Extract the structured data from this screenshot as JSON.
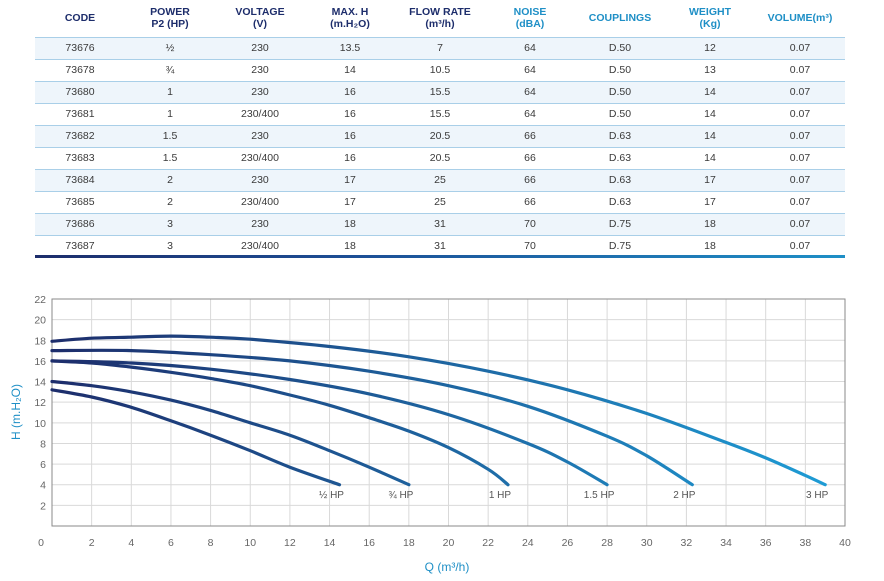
{
  "table": {
    "headers": [
      {
        "label": "CODE",
        "accent": "navy"
      },
      {
        "label": "POWER\nP2 (HP)",
        "accent": "navy"
      },
      {
        "label": "VOLTAGE\n(V)",
        "accent": "navy"
      },
      {
        "label": "MAX. H\n(m.H₂O)",
        "accent": "navy"
      },
      {
        "label": "FLOW RATE\n(m³/h)",
        "accent": "navy"
      },
      {
        "label": "NOISE\n(dBA)",
        "accent": "teal"
      },
      {
        "label": "COUPLINGS",
        "accent": "teal"
      },
      {
        "label": "WEIGHT\n(Kg)",
        "accent": "teal"
      },
      {
        "label": "VOLUME(m³)",
        "accent": "teal"
      }
    ],
    "rows": [
      [
        "73676",
        "½",
        "230",
        "13.5",
        "7",
        "64",
        "D.50",
        "12",
        "0.07"
      ],
      [
        "73678",
        "¾",
        "230",
        "14",
        "10.5",
        "64",
        "D.50",
        "13",
        "0.07"
      ],
      [
        "73680",
        "1",
        "230",
        "16",
        "15.5",
        "64",
        "D.50",
        "14",
        "0.07"
      ],
      [
        "73681",
        "1",
        "230/400",
        "16",
        "15.5",
        "64",
        "D.50",
        "14",
        "0.07"
      ],
      [
        "73682",
        "1.5",
        "230",
        "16",
        "20.5",
        "66",
        "D.63",
        "14",
        "0.07"
      ],
      [
        "73683",
        "1.5",
        "230/400",
        "16",
        "20.5",
        "66",
        "D.63",
        "14",
        "0.07"
      ],
      [
        "73684",
        "2",
        "230",
        "17",
        "25",
        "66",
        "D.63",
        "17",
        "0.07"
      ],
      [
        "73685",
        "2",
        "230/400",
        "17",
        "25",
        "66",
        "D.63",
        "17",
        "0.07"
      ],
      [
        "73686",
        "3",
        "230",
        "18",
        "31",
        "70",
        "D.75",
        "18",
        "0.07"
      ],
      [
        "73687",
        "3",
        "230/400",
        "18",
        "31",
        "70",
        "D.75",
        "18",
        "0.07"
      ]
    ]
  },
  "colors": {
    "navy": "#1d2d6b",
    "teal": "#1e8fc6",
    "grid": "#d9d9d9",
    "frame": "#8a8a8a",
    "row_tint": "#eef5fb",
    "curve_start": "#1d2d6b",
    "curve_end": "#1e9fd8"
  },
  "chart_data": {
    "type": "line",
    "title": "",
    "xlabel": "Q (m³/h)",
    "ylabel": "H (m.H₂O)",
    "xlim": [
      0,
      40
    ],
    "ylim": [
      0,
      22
    ],
    "xticks": [
      0,
      2,
      4,
      6,
      8,
      10,
      12,
      14,
      16,
      18,
      20,
      22,
      24,
      26,
      28,
      30,
      32,
      34,
      36,
      38,
      40
    ],
    "yticks": [
      2,
      4,
      6,
      8,
      10,
      12,
      14,
      16,
      18,
      20,
      22
    ],
    "grid": true,
    "legend": "none",
    "series": [
      {
        "name": "½ HP",
        "x": [
          0,
          2,
          4,
          6,
          8,
          10,
          12,
          14.5
        ],
        "y": [
          13.2,
          12.5,
          11.5,
          10.2,
          8.8,
          7.3,
          5.7,
          4
        ]
      },
      {
        "name": "¾ HP",
        "x": [
          0,
          2,
          4,
          6,
          8,
          10,
          12,
          14,
          16,
          18
        ],
        "y": [
          14,
          13.6,
          13,
          12.2,
          11.2,
          10,
          8.8,
          7.3,
          5.7,
          4
        ]
      },
      {
        "name": "1 HP",
        "x": [
          0,
          2,
          4,
          6,
          8,
          10,
          12,
          14,
          16,
          18,
          20,
          22,
          23
        ],
        "y": [
          16,
          15.8,
          15.4,
          14.9,
          14.3,
          13.6,
          12.7,
          11.7,
          10.5,
          9.2,
          7.6,
          5.5,
          4
        ]
      },
      {
        "name": "1.5 HP",
        "x": [
          0,
          4,
          8,
          12,
          16,
          20,
          24,
          26,
          28
        ],
        "y": [
          16,
          15.8,
          15.2,
          14.2,
          12.8,
          10.8,
          8,
          6.2,
          4
        ]
      },
      {
        "name": "2 HP",
        "x": [
          0,
          4,
          8,
          12,
          16,
          20,
          24,
          28,
          30,
          32.3
        ],
        "y": [
          17,
          17,
          16.6,
          16,
          15,
          13.6,
          11.6,
          8.7,
          6.8,
          4
        ]
      },
      {
        "name": "3 HP",
        "x": [
          0,
          2,
          4,
          6,
          8,
          10,
          14,
          18,
          22,
          26,
          30,
          34,
          36,
          38,
          39
        ],
        "y": [
          17.9,
          18.2,
          18.3,
          18.4,
          18.3,
          18.1,
          17.4,
          16.4,
          15,
          13.2,
          10.9,
          8.1,
          6.6,
          4.9,
          4
        ]
      }
    ],
    "curve_labels": [
      "½ HP",
      "¾ HP",
      "1 HP",
      "1.5 HP",
      "2 HP",
      "3 HP"
    ]
  }
}
